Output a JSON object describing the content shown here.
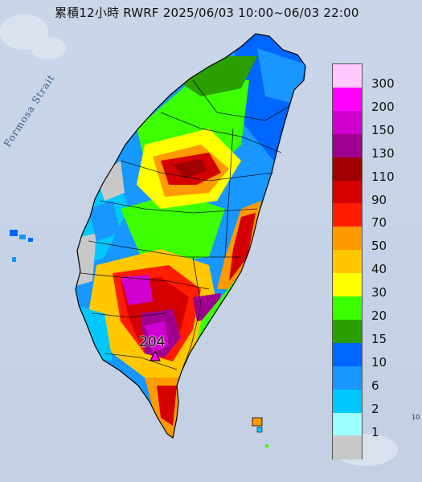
{
  "title": "累積12小時 RWRF 2025/06/03 10:00~06/03 22:00",
  "strait_label": "Formosa Strait",
  "max_marker": {
    "value": "204"
  },
  "corner_text": "10",
  "legend": [
    {
      "label": "300",
      "color": "#ffc8ff"
    },
    {
      "label": "200",
      "color": "#ff00ff"
    },
    {
      "label": "150",
      "color": "#d000d0"
    },
    {
      "label": "130",
      "color": "#a0008f"
    },
    {
      "label": "110",
      "color": "#a00000"
    },
    {
      "label": "90",
      "color": "#d40000"
    },
    {
      "label": "70",
      "color": "#ff1d00"
    },
    {
      "label": "50",
      "color": "#ff9a00"
    },
    {
      "label": "40",
      "color": "#ffc800"
    },
    {
      "label": "30",
      "color": "#ffff00"
    },
    {
      "label": "20",
      "color": "#3cff00"
    },
    {
      "label": "15",
      "color": "#2c9f00"
    },
    {
      "label": "10",
      "color": "#0066ff"
    },
    {
      "label": "6",
      "color": "#1797ff"
    },
    {
      "label": "2",
      "color": "#00c8ff"
    },
    {
      "label": "1",
      "color": "#9effff"
    },
    {
      "label": "",
      "color": "#c8c8c8"
    }
  ]
}
